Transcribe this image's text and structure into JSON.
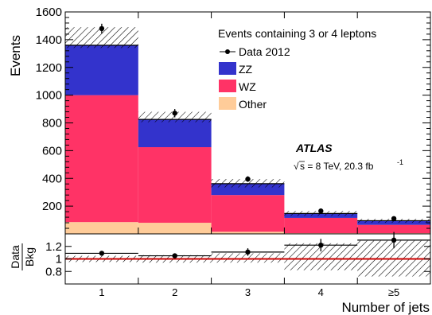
{
  "chart_data": [
    {
      "type": "bar",
      "stacked": true,
      "categories": [
        "1",
        "2",
        "3",
        "4",
        "≥5"
      ],
      "ylabel": "Events",
      "ylim": [
        0,
        1600
      ],
      "yticks": [
        200,
        400,
        600,
        800,
        1000,
        1200,
        1400,
        1600
      ],
      "legend_header": "Events containing 3 or 4 leptons",
      "legend_placement": "top-right",
      "series": [
        {
          "name": "Other",
          "values": [
            85,
            80,
            15,
            5,
            5
          ],
          "color": "#ffcc99"
        },
        {
          "name": "WZ",
          "values": [
            915,
            545,
            265,
            110,
            60
          ],
          "color": "#ff3366"
        },
        {
          "name": "ZZ",
          "values": [
            360,
            200,
            82,
            32,
            30
          ],
          "color": "#3333cc"
        }
      ],
      "uncertainty_band": {
        "low": [
          1340,
          805,
          335,
          130,
          80
        ],
        "high": [
          1490,
          880,
          395,
          165,
          108
        ]
      },
      "data": {
        "name": "Data 2012",
        "values": [
          1480,
          870,
          395,
          165,
          110
        ],
        "errors": [
          35,
          30,
          20,
          13,
          10
        ]
      },
      "atlas_label": "ATLAS",
      "energy_label": {
        "sqrt": "√",
        "text": "s = 8 TeV, 20.3 fb",
        "sup": "-1"
      }
    },
    {
      "type": "scatter",
      "categories": [
        "1",
        "2",
        "3",
        "4",
        "≥5"
      ],
      "ylabel_top": "Data",
      "ylabel_bottom": "Bkg",
      "xlabel": "Number of jets",
      "ylim": [
        0.6,
        1.4
      ],
      "yticks": [
        "0.8",
        "1",
        "1.2"
      ],
      "reference_line": 1,
      "values": [
        1.09,
        1.05,
        1.11,
        1.22,
        1.3
      ],
      "errors": [
        0.03,
        0.04,
        0.06,
        0.1,
        0.13
      ],
      "band_low": [
        0.95,
        0.94,
        0.94,
        0.82,
        0.72
      ],
      "band_high": [
        1.05,
        1.06,
        1.09,
        1.25,
        1.29
      ]
    }
  ]
}
